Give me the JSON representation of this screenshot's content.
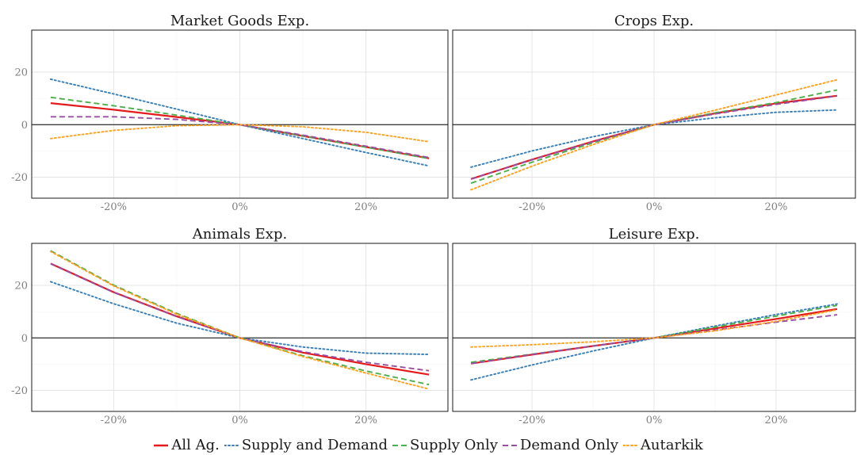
{
  "chart_data": {
    "type": "line",
    "legend_position": "bottom",
    "grid": true,
    "series_styles": [
      {
        "name": "All Ag.",
        "color": "#e41a1c",
        "dash": "solid"
      },
      {
        "name": "Supply and Demand",
        "color": "#377eb8",
        "dash": "dotted"
      },
      {
        "name": "Supply Only",
        "color": "#4daf4a",
        "dash": "dashed"
      },
      {
        "name": "Demand Only",
        "color": "#984ea3",
        "dash": "dashed"
      },
      {
        "name": "Autarkik",
        "color": "#ff9f1c",
        "dash": "dotted"
      }
    ],
    "panels": [
      {
        "title": "Market Goods Exp.",
        "x": [
          -0.3,
          -0.2,
          -0.1,
          0,
          0.1,
          0.2,
          0.3
        ],
        "xlim": [
          -0.33,
          0.33
        ],
        "ylim": [
          -28,
          36
        ],
        "xticks": [
          -0.2,
          0,
          0.2
        ],
        "xtick_labels": [
          "-20%",
          "0%",
          "20%"
        ],
        "yticks": [
          -20,
          0,
          20
        ],
        "ytick_labels": [
          "-20",
          "0",
          "20"
        ],
        "series": [
          {
            "name": "All Ag.",
            "values": [
              8.2,
              5.7,
              2.9,
              0,
              -4.3,
              -8.5,
              -12.8
            ]
          },
          {
            "name": "Supply and Demand",
            "values": [
              17.3,
              11.7,
              5.9,
              0,
              -5.3,
              -10.6,
              -15.7
            ]
          },
          {
            "name": "Supply Only",
            "values": [
              10.4,
              7.2,
              3.6,
              0,
              -4.3,
              -8.6,
              -12.9
            ]
          },
          {
            "name": "Demand Only",
            "values": [
              3.0,
              3.0,
              2.0,
              0,
              -4.0,
              -8.2,
              -12.5
            ]
          },
          {
            "name": "Autarkik",
            "values": [
              -5.3,
              -2.2,
              -0.4,
              0,
              -0.8,
              -2.9,
              -6.5
            ]
          }
        ]
      },
      {
        "title": "Crops Exp.",
        "x": [
          -0.3,
          -0.2,
          -0.1,
          0,
          0.1,
          0.2,
          0.3
        ],
        "xlim": [
          -0.33,
          0.33
        ],
        "ylim": [
          -28,
          36
        ],
        "xticks": [
          -0.2,
          0,
          0.2
        ],
        "xtick_labels": [
          "-20%",
          "0%",
          "20%"
        ],
        "yticks": [
          -20,
          0,
          20
        ],
        "ytick_labels": [
          "-20",
          "0",
          "20"
        ],
        "series": [
          {
            "name": "All Ag.",
            "values": [
              -20.7,
              -13.3,
              -6.4,
              0,
              4.3,
              8.1,
              11.0
            ]
          },
          {
            "name": "Supply and Demand",
            "values": [
              -16.2,
              -10.0,
              -4.6,
              0,
              2.6,
              4.7,
              5.6
            ]
          },
          {
            "name": "Supply Only",
            "values": [
              -22.3,
              -14.3,
              -6.9,
              0,
              4.5,
              8.4,
              13.2
            ]
          },
          {
            "name": "Demand Only",
            "values": [
              -20.7,
              -13.4,
              -6.5,
              0,
              4.1,
              7.7,
              10.9
            ]
          },
          {
            "name": "Autarkik",
            "values": [
              -24.8,
              -15.8,
              -7.6,
              0,
              5.5,
              11.3,
              17.1
            ]
          }
        ]
      },
      {
        "title": "Animals Exp.",
        "x": [
          -0.3,
          -0.2,
          -0.1,
          0,
          0.1,
          0.2,
          0.3
        ],
        "xlim": [
          -0.33,
          0.33
        ],
        "ylim": [
          -28,
          36
        ],
        "xticks": [
          -0.2,
          0,
          0.2
        ],
        "xtick_labels": [
          "-20%",
          "0%",
          "20%"
        ],
        "yticks": [
          -20,
          0,
          20
        ],
        "ytick_labels": [
          "-20",
          "0",
          "20"
        ],
        "series": [
          {
            "name": "All Ag.",
            "values": [
              28.3,
              17.4,
              8.2,
              0,
              -5.6,
              -10.0,
              -14.0
            ]
          },
          {
            "name": "Supply and Demand",
            "values": [
              21.4,
              13.0,
              5.6,
              0,
              -3.5,
              -5.8,
              -6.3
            ]
          },
          {
            "name": "Supply Only",
            "values": [
              33.2,
              20.1,
              9.3,
              0,
              -6.8,
              -12.6,
              -17.8
            ]
          },
          {
            "name": "Demand Only",
            "values": [
              28.2,
              17.3,
              8.1,
              0,
              -5.3,
              -9.3,
              -12.5
            ]
          },
          {
            "name": "Autarkik",
            "values": [
              32.9,
              19.8,
              9.0,
              0,
              -7.1,
              -13.4,
              -19.5
            ]
          }
        ]
      },
      {
        "title": "Leisure Exp.",
        "x": [
          -0.3,
          -0.2,
          -0.1,
          0,
          0.1,
          0.2,
          0.3
        ],
        "xlim": [
          -0.33,
          0.33
        ],
        "ylim": [
          -28,
          36
        ],
        "xticks": [
          -0.2,
          0,
          0.2
        ],
        "xtick_labels": [
          "-20%",
          "0%",
          "20%"
        ],
        "yticks": [
          -20,
          0,
          20
        ],
        "ytick_labels": [
          "-20",
          "0",
          "20"
        ],
        "series": [
          {
            "name": "All Ag.",
            "values": [
              -9.8,
              -6.4,
              -3.1,
              0,
              3.6,
              7.2,
              11.0
            ]
          },
          {
            "name": "Supply and Demand",
            "values": [
              -16.0,
              -10.3,
              -5.0,
              0,
              4.5,
              8.9,
              12.9
            ]
          },
          {
            "name": "Supply Only",
            "values": [
              -9.3,
              -6.2,
              -3.1,
              0,
              4.1,
              8.3,
              12.4
            ]
          },
          {
            "name": "Demand Only",
            "values": [
              -9.8,
              -6.3,
              -3.1,
              0,
              3.0,
              6.0,
              8.8
            ]
          },
          {
            "name": "Autarkik",
            "values": [
              -3.5,
              -2.6,
              -1.5,
              0,
              2.7,
              6.3,
              10.7
            ]
          }
        ]
      }
    ]
  }
}
